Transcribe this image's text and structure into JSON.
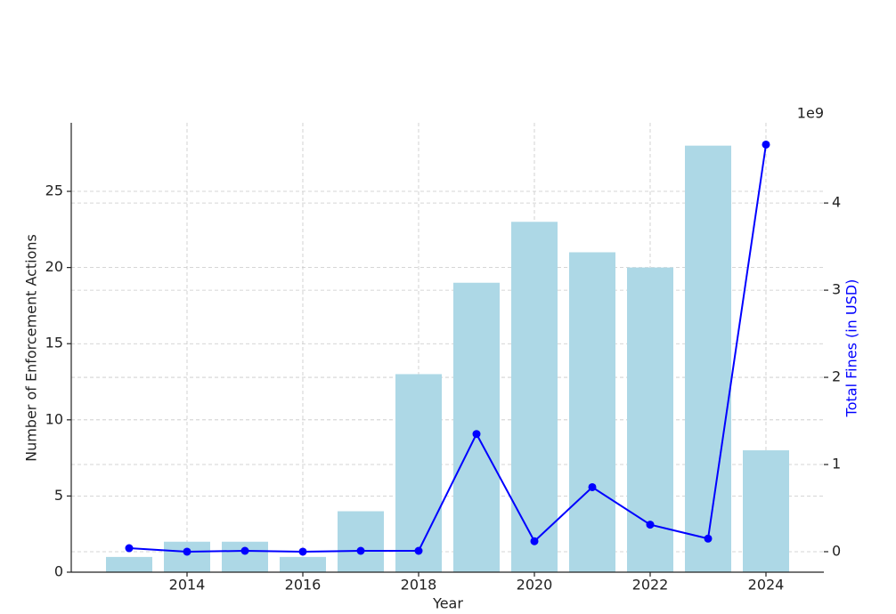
{
  "chart_data": {
    "type": "combo",
    "x_label": "Year",
    "y_label": "Number of Enforcement Actions",
    "y2_label": "Total Fines (in USD)",
    "y2_label_color": "#0000ff",
    "y2_offset_label": "1e9",
    "x": [
      2013,
      2014,
      2015,
      2016,
      2017,
      2018,
      2019,
      2020,
      2021,
      2022,
      2023,
      2024
    ],
    "series": [
      {
        "type": "bar",
        "color": "#add8e6",
        "values": [
          1,
          2,
          2,
          1,
          4,
          13,
          19,
          23,
          21,
          20,
          28,
          8
        ]
      },
      {
        "type": "line",
        "axis": "y2",
        "color": "#0000ff",
        "values": [
          0.04,
          0.0,
          0.01,
          0.0,
          0.01,
          0.01,
          1.35,
          0.12,
          0.74,
          0.31,
          0.15,
          4.67
        ]
      }
    ],
    "xlim": [
      2012,
      2025
    ],
    "xticks": [
      2014,
      2016,
      2018,
      2020,
      2022,
      2024
    ],
    "ylim": [
      0,
      29.5
    ],
    "yticks": [
      0,
      5,
      10,
      15,
      20,
      25
    ],
    "y2lim": [
      -0.235,
      4.92
    ],
    "y2ticks": [
      0,
      1,
      2,
      3,
      4
    ],
    "grid": true
  }
}
